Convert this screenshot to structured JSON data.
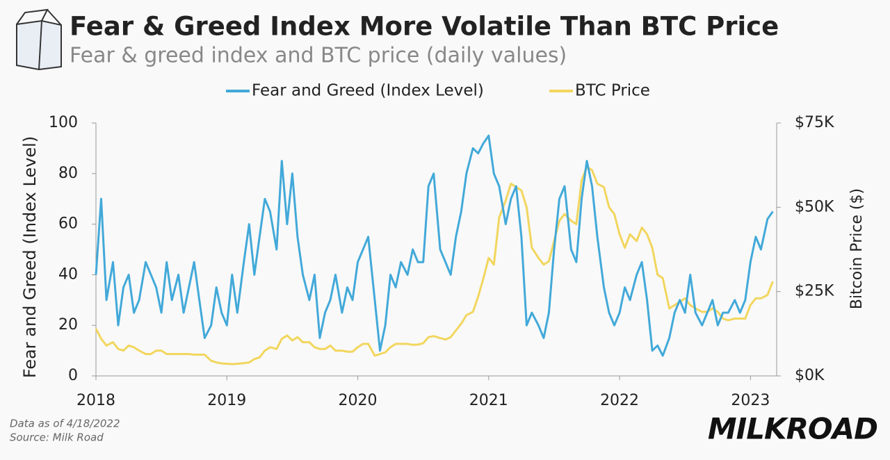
{
  "chart_data": {
    "type": "line",
    "title": "Fear & Greed Index More Volatile Than BTC Price",
    "subtitle": "Fear & greed index and BTC price (daily values)",
    "y_label": "Fear and Greed (Index Level)",
    "y2_label": "Bitcoin Price ($)",
    "notes": [
      "Data as of 4/18/2022",
      "Source: Milk Road"
    ],
    "brand": "MILKROAD",
    "legend": "top",
    "xlim": [
      2018,
      2023.2
    ],
    "xticks": [
      2018,
      2019,
      2020,
      2021,
      2022,
      2023
    ],
    "ylim": [
      0,
      100
    ],
    "yticks": [
      0,
      20,
      40,
      60,
      80,
      100
    ],
    "y2lim": [
      0,
      75000
    ],
    "y2ticks": [
      {
        "value": 0,
        "label": "$0K"
      },
      {
        "value": 25000,
        "label": "$25K"
      },
      {
        "value": 50000,
        "label": "$50K"
      },
      {
        "value": 75000,
        "label": "$75K"
      }
    ],
    "x": [
      2018,
      2018.04,
      2018.08,
      2018.13,
      2018.17,
      2018.21,
      2018.25,
      2018.29,
      2018.33,
      2018.38,
      2018.42,
      2018.46,
      2018.5,
      2018.54,
      2018.58,
      2018.63,
      2018.67,
      2018.71,
      2018.75,
      2018.79,
      2018.83,
      2018.88,
      2018.92,
      2018.96,
      2019,
      2019.04,
      2019.08,
      2019.13,
      2019.17,
      2019.21,
      2019.25,
      2019.29,
      2019.33,
      2019.38,
      2019.42,
      2019.46,
      2019.5,
      2019.54,
      2019.58,
      2019.63,
      2019.67,
      2019.71,
      2019.75,
      2019.79,
      2019.83,
      2019.88,
      2019.92,
      2019.96,
      2020,
      2020.04,
      2020.08,
      2020.13,
      2020.17,
      2020.21,
      2020.25,
      2020.29,
      2020.33,
      2020.38,
      2020.42,
      2020.46,
      2020.5,
      2020.54,
      2020.58,
      2020.63,
      2020.67,
      2020.71,
      2020.75,
      2020.79,
      2020.83,
      2020.88,
      2020.92,
      2020.96,
      2021,
      2021.04,
      2021.08,
      2021.13,
      2021.17,
      2021.21,
      2021.25,
      2021.29,
      2021.33,
      2021.38,
      2021.42,
      2021.46,
      2021.5,
      2021.54,
      2021.58,
      2021.63,
      2021.67,
      2021.71,
      2021.75,
      2021.79,
      2021.83,
      2021.88,
      2021.92,
      2021.96,
      2022,
      2022.04,
      2022.08,
      2022.13,
      2022.17,
      2022.21,
      2022.25,
      2022.29,
      2022.33,
      2022.38,
      2022.42,
      2022.46,
      2022.5,
      2022.54,
      2022.58,
      2022.63,
      2022.67,
      2022.71,
      2022.75,
      2022.79,
      2022.83,
      2022.88,
      2022.92,
      2022.96,
      2023,
      2023.04,
      2023.08,
      2023.13,
      2023.17
    ],
    "series": [
      {
        "name": "Fear and Greed (Index Level)",
        "color": "#42a9d9",
        "values": [
          40,
          70,
          30,
          45,
          20,
          35,
          40,
          25,
          30,
          45,
          40,
          35,
          25,
          45,
          30,
          40,
          25,
          35,
          45,
          30,
          15,
          20,
          35,
          25,
          20,
          40,
          25,
          45,
          60,
          40,
          55,
          70,
          65,
          50,
          85,
          60,
          80,
          55,
          40,
          30,
          40,
          15,
          25,
          30,
          40,
          25,
          35,
          30,
          45,
          50,
          55,
          30,
          10,
          20,
          40,
          35,
          45,
          40,
          50,
          45,
          45,
          75,
          80,
          50,
          45,
          40,
          55,
          65,
          80,
          90,
          88,
          92,
          95,
          80,
          75,
          60,
          70,
          75,
          55,
          20,
          25,
          20,
          15,
          25,
          50,
          70,
          75,
          50,
          45,
          70,
          85,
          75,
          55,
          35,
          25,
          20,
          25,
          35,
          30,
          40,
          45,
          30,
          10,
          12,
          8,
          15,
          25,
          30,
          25,
          40,
          25,
          20,
          25,
          30,
          20,
          25,
          25,
          30,
          25,
          30,
          45,
          55,
          50,
          62,
          65
        ]
      },
      {
        "name": "BTC Price",
        "color": "#f2d65e",
        "axis": "y2",
        "values": [
          14000,
          11000,
          9000,
          10000,
          8000,
          7500,
          9000,
          8500,
          7500,
          6500,
          6500,
          7500,
          7500,
          6500,
          6500,
          6500,
          6500,
          6500,
          6300,
          6300,
          6300,
          4500,
          4000,
          3700,
          3600,
          3500,
          3600,
          3800,
          4000,
          5000,
          5500,
          7500,
          8500,
          8000,
          11000,
          12000,
          10500,
          11500,
          10000,
          10000,
          8500,
          8000,
          8000,
          9000,
          7500,
          7500,
          7200,
          7200,
          8500,
          9500,
          9500,
          6000,
          6500,
          7000,
          8500,
          9500,
          9500,
          9500,
          9200,
          9300,
          9700,
          11500,
          11800,
          11200,
          10800,
          11500,
          13500,
          15500,
          18000,
          19000,
          23500,
          29000,
          35000,
          33000,
          47000,
          52000,
          57000,
          56000,
          55000,
          50000,
          38000,
          35000,
          33000,
          34000,
          40000,
          46000,
          48000,
          46000,
          45000,
          58000,
          62000,
          61000,
          57000,
          56000,
          50000,
          48000,
          42000,
          38000,
          42000,
          40000,
          44000,
          42000,
          38000,
          30000,
          29000,
          20000,
          21000,
          22000,
          23000,
          21000,
          20000,
          19000,
          19000,
          20000,
          19000,
          17000,
          16500,
          17000,
          17000,
          17000,
          21000,
          23000,
          23000,
          24000,
          28000
        ]
      }
    ]
  }
}
